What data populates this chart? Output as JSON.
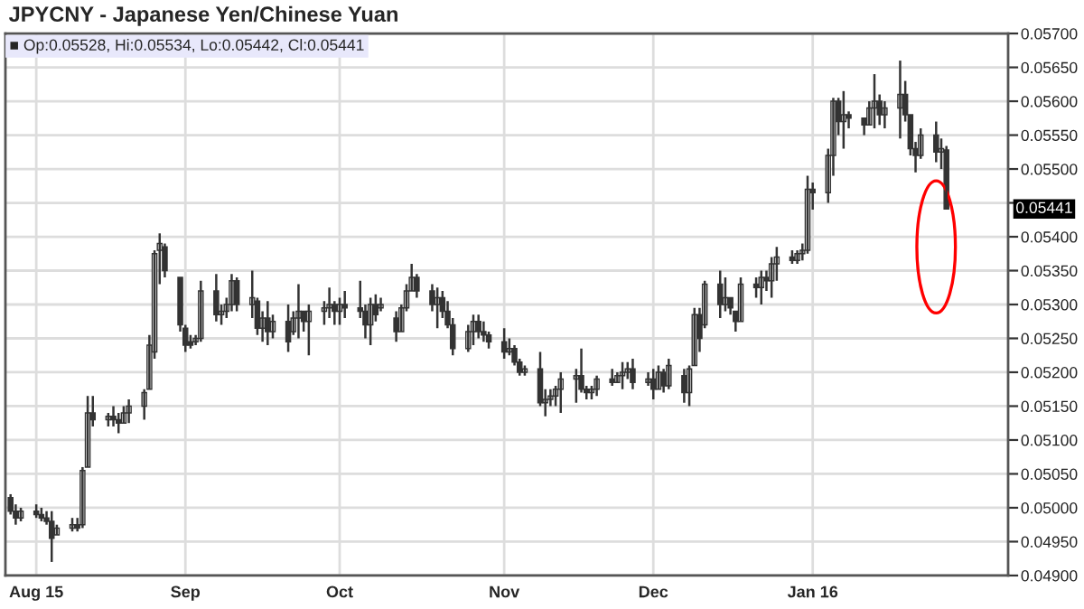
{
  "chart_data": {
    "type": "candlestick",
    "title": "JPYCNY - Japanese Yen/Chinese Yuan",
    "subtitle": "■ Op:0.05528, Hi:0.05534, Lo:0.05442, Cl:0.05441",
    "x": [
      "2015-07-29",
      "2015-07-30",
      "2015-07-31",
      "2015-08-03",
      "2015-08-04",
      "2015-08-05",
      "2015-08-06",
      "2015-08-07",
      "2015-08-10",
      "2015-08-11",
      "2015-08-12",
      "2015-08-13",
      "2015-08-14",
      "2015-08-17",
      "2015-08-18",
      "2015-08-19",
      "2015-08-20",
      "2015-08-21",
      "2015-08-24",
      "2015-08-25",
      "2015-08-26",
      "2015-08-27",
      "2015-08-28",
      "2015-08-31",
      "2015-09-01",
      "2015-09-02",
      "2015-09-03",
      "2015-09-04",
      "2015-09-07",
      "2015-09-08",
      "2015-09-09",
      "2015-09-10",
      "2015-09-11",
      "2015-09-14",
      "2015-09-15",
      "2015-09-16",
      "2015-09-17",
      "2015-09-18",
      "2015-09-21",
      "2015-09-22",
      "2015-09-23",
      "2015-09-24",
      "2015-09-25",
      "2015-09-28",
      "2015-09-29",
      "2015-09-30",
      "2015-10-01",
      "2015-10-02",
      "2015-10-05",
      "2015-10-06",
      "2015-10-07",
      "2015-10-08",
      "2015-10-09",
      "2015-10-12",
      "2015-10-13",
      "2015-10-14",
      "2015-10-15",
      "2015-10-16",
      "2015-10-19",
      "2015-10-20",
      "2015-10-21",
      "2015-10-22",
      "2015-10-23",
      "2015-10-26",
      "2015-10-27",
      "2015-10-28",
      "2015-10-29",
      "2015-10-30",
      "2015-11-02",
      "2015-11-03",
      "2015-11-04",
      "2015-11-05",
      "2015-11-06",
      "2015-11-09",
      "2015-11-10",
      "2015-11-11",
      "2015-11-12",
      "2015-11-13",
      "2015-11-16",
      "2015-11-17",
      "2015-11-18",
      "2015-11-19",
      "2015-11-20",
      "2015-11-23",
      "2015-11-24",
      "2015-11-25",
      "2015-11-26",
      "2015-11-27",
      "2015-11-30",
      "2015-12-01",
      "2015-12-02",
      "2015-12-03",
      "2015-12-04",
      "2015-12-07",
      "2015-12-08",
      "2015-12-09",
      "2015-12-10",
      "2015-12-11",
      "2015-12-14",
      "2015-12-15",
      "2015-12-16",
      "2015-12-17",
      "2015-12-18",
      "2015-12-21",
      "2015-12-22",
      "2015-12-23",
      "2015-12-24",
      "2015-12-25",
      "2015-12-28",
      "2015-12-29",
      "2015-12-30",
      "2015-12-31",
      "2016-01-01",
      "2016-01-04",
      "2016-01-05",
      "2016-01-06",
      "2016-01-07",
      "2016-01-08",
      "2016-01-11",
      "2016-01-12",
      "2016-01-13",
      "2016-01-14",
      "2016-01-15",
      "2016-01-18",
      "2016-01-19",
      "2016-01-20",
      "2016-01-21",
      "2016-01-22",
      "2016-01-25",
      "2016-01-26",
      "2016-01-27"
    ],
    "ohlc": [
      [
        0.05015,
        0.0502,
        0.0499,
        0.04995
      ],
      [
        0.04995,
        0.05005,
        0.04975,
        0.04985
      ],
      [
        0.04985,
        0.05,
        0.0498,
        0.04995
      ],
      [
        0.04995,
        0.05005,
        0.04985,
        0.0499
      ],
      [
        0.0499,
        0.05,
        0.0498,
        0.04985
      ],
      [
        0.04985,
        0.04995,
        0.04975,
        0.0498
      ],
      [
        0.0498,
        0.04995,
        0.0492,
        0.04955
      ],
      [
        0.0496,
        0.04975,
        0.0496,
        0.0497
      ],
      [
        0.0497,
        0.04985,
        0.04965,
        0.04975
      ],
      [
        0.04975,
        0.04985,
        0.04965,
        0.0497
      ],
      [
        0.04975,
        0.0506,
        0.0497,
        0.05055
      ],
      [
        0.0506,
        0.05165,
        0.0506,
        0.0514
      ],
      [
        0.0514,
        0.05165,
        0.0512,
        0.0513
      ],
      [
        0.0513,
        0.0514,
        0.0512,
        0.05135
      ],
      [
        0.05135,
        0.0515,
        0.0512,
        0.0513
      ],
      [
        0.0513,
        0.0514,
        0.0511,
        0.05125
      ],
      [
        0.05125,
        0.0515,
        0.05125,
        0.0514
      ],
      [
        0.0514,
        0.0516,
        0.05125,
        0.0515
      ],
      [
        0.0515,
        0.05175,
        0.0513,
        0.0517
      ],
      [
        0.05175,
        0.05255,
        0.05175,
        0.0524
      ],
      [
        0.0523,
        0.0538,
        0.0522,
        0.05375
      ],
      [
        0.0538,
        0.05405,
        0.0533,
        0.0539
      ],
      [
        0.05385,
        0.0539,
        0.0534,
        0.0535
      ],
      [
        0.0534,
        0.0534,
        0.0526,
        0.0527
      ],
      [
        0.05265,
        0.0527,
        0.0523,
        0.0524
      ],
      [
        0.05245,
        0.05255,
        0.05235,
        0.0524
      ],
      [
        0.05245,
        0.05255,
        0.0524,
        0.0525
      ],
      [
        0.0525,
        0.05335,
        0.05245,
        0.0532
      ],
      [
        0.0532,
        0.05345,
        0.05275,
        0.05285
      ],
      [
        0.05285,
        0.053,
        0.0527,
        0.0529
      ],
      [
        0.0529,
        0.0531,
        0.0528,
        0.053
      ],
      [
        0.053,
        0.05345,
        0.0529,
        0.05335
      ],
      [
        0.05335,
        0.0534,
        0.0529,
        0.053
      ],
      [
        0.053,
        0.0535,
        0.0528,
        0.0531
      ],
      [
        0.05305,
        0.0531,
        0.05255,
        0.05265
      ],
      [
        0.05265,
        0.0529,
        0.05245,
        0.0528
      ],
      [
        0.0528,
        0.05305,
        0.0524,
        0.0526
      ],
      [
        0.0526,
        0.05285,
        0.0525,
        0.05275
      ],
      [
        0.05275,
        0.053,
        0.0523,
        0.05245
      ],
      [
        0.0526,
        0.0529,
        0.05255,
        0.0528
      ],
      [
        0.0528,
        0.0533,
        0.0525,
        0.0529
      ],
      [
        0.0529,
        0.0529,
        0.0526,
        0.05275
      ],
      [
        0.05275,
        0.053,
        0.05225,
        0.0529
      ],
      [
        0.0529,
        0.05305,
        0.0527,
        0.05295
      ],
      [
        0.05295,
        0.05325,
        0.0528,
        0.053
      ],
      [
        0.053,
        0.05305,
        0.0527,
        0.0529
      ],
      [
        0.0529,
        0.0531,
        0.0527,
        0.053
      ],
      [
        0.053,
        0.0532,
        0.0528,
        0.05295
      ],
      [
        0.05295,
        0.05335,
        0.0528,
        0.0529
      ],
      [
        0.0529,
        0.053,
        0.0525,
        0.0527
      ],
      [
        0.0527,
        0.0531,
        0.0524,
        0.053
      ],
      [
        0.053,
        0.05315,
        0.05275,
        0.05285
      ],
      [
        0.05295,
        0.0531,
        0.0529,
        0.053
      ],
      [
        0.0528,
        0.0529,
        0.05245,
        0.0526
      ],
      [
        0.0526,
        0.053,
        0.0526,
        0.05295
      ],
      [
        0.05295,
        0.0533,
        0.0529,
        0.0532
      ],
      [
        0.0532,
        0.0536,
        0.0532,
        0.0534
      ],
      [
        0.0534,
        0.05345,
        0.0531,
        0.0532
      ],
      [
        0.0532,
        0.0533,
        0.0529,
        0.053
      ],
      [
        0.053,
        0.05325,
        0.05265,
        0.0531
      ],
      [
        0.0531,
        0.0532,
        0.0528,
        0.0529
      ],
      [
        0.0529,
        0.05305,
        0.05265,
        0.0527
      ],
      [
        0.0527,
        0.0528,
        0.05225,
        0.05235
      ],
      [
        0.05235,
        0.0527,
        0.0523,
        0.0526
      ],
      [
        0.0526,
        0.05285,
        0.0524,
        0.05275
      ],
      [
        0.05275,
        0.05285,
        0.0525,
        0.0526
      ],
      [
        0.0526,
        0.05275,
        0.05245,
        0.05255
      ],
      [
        0.05255,
        0.0526,
        0.05235,
        0.05245
      ],
      [
        0.05245,
        0.05265,
        0.0522,
        0.0523
      ],
      [
        0.0523,
        0.0525,
        0.05225,
        0.05235
      ],
      [
        0.05235,
        0.0524,
        0.0521,
        0.05215
      ],
      [
        0.05215,
        0.0522,
        0.05195,
        0.052
      ],
      [
        0.052,
        0.0521,
        0.05195,
        0.05205
      ],
      [
        0.05205,
        0.0523,
        0.0515,
        0.05155
      ],
      [
        0.05155,
        0.05175,
        0.05135,
        0.0516
      ],
      [
        0.0516,
        0.05175,
        0.0515,
        0.05165
      ],
      [
        0.05165,
        0.0518,
        0.0515,
        0.05175
      ],
      [
        0.05175,
        0.052,
        0.0514,
        0.0519
      ],
      [
        0.0519,
        0.05205,
        0.05155,
        0.05195
      ],
      [
        0.05195,
        0.05235,
        0.0517,
        0.05175
      ],
      [
        0.05175,
        0.0518,
        0.0516,
        0.0517
      ],
      [
        0.0517,
        0.0518,
        0.0516,
        0.05175
      ],
      [
        0.05175,
        0.05195,
        0.05165,
        0.0519
      ],
      [
        0.0519,
        0.05205,
        0.0518,
        0.05185
      ],
      [
        0.05185,
        0.052,
        0.05185,
        0.05195
      ],
      [
        0.05195,
        0.05215,
        0.05175,
        0.052
      ],
      [
        0.052,
        0.05215,
        0.0519,
        0.05205
      ],
      [
        0.05205,
        0.0522,
        0.05175,
        0.05185
      ],
      [
        0.05185,
        0.052,
        0.0518,
        0.0519
      ],
      [
        0.0519,
        0.05205,
        0.0516,
        0.05175
      ],
      [
        0.05175,
        0.0521,
        0.05175,
        0.052
      ],
      [
        0.052,
        0.05205,
        0.0517,
        0.0518
      ],
      [
        0.0518,
        0.0522,
        0.05175,
        0.0521
      ],
      [
        0.05195,
        0.05205,
        0.05155,
        0.0517
      ],
      [
        0.0517,
        0.0521,
        0.0515,
        0.05205
      ],
      [
        0.0521,
        0.05295,
        0.0521,
        0.05285
      ],
      [
        0.05285,
        0.05295,
        0.0523,
        0.0525
      ],
      [
        0.0527,
        0.05335,
        0.05265,
        0.0533
      ],
      [
        0.0533,
        0.0535,
        0.0528,
        0.053
      ],
      [
        0.053,
        0.0534,
        0.0529,
        0.0531
      ],
      [
        0.0531,
        0.0531,
        0.05285,
        0.05295
      ],
      [
        0.0529,
        0.0529,
        0.0526,
        0.05275
      ],
      [
        0.05275,
        0.0534,
        0.05275,
        0.0533
      ],
      [
        0.0533,
        0.0534,
        0.0531,
        0.05325
      ],
      [
        0.05325,
        0.0535,
        0.053,
        0.0534
      ],
      [
        0.0534,
        0.0535,
        0.0532,
        0.05335
      ],
      [
        0.05335,
        0.0537,
        0.0531,
        0.0536
      ],
      [
        0.0536,
        0.05385,
        0.05335,
        0.0537
      ],
      [
        0.0537,
        0.0538,
        0.0536,
        0.05365
      ],
      [
        0.05365,
        0.0538,
        0.0536,
        0.05375
      ],
      [
        0.05375,
        0.0539,
        0.05365,
        0.0538
      ],
      [
        0.0538,
        0.0549,
        0.05375,
        0.0547
      ],
      [
        0.0547,
        0.0548,
        0.0544,
        0.05465
      ],
      [
        0.05465,
        0.0553,
        0.0545,
        0.0552
      ],
      [
        0.0552,
        0.05605,
        0.0549,
        0.056
      ],
      [
        0.056,
        0.05605,
        0.0555,
        0.0557
      ],
      [
        0.0557,
        0.05615,
        0.0553,
        0.0558
      ],
      [
        0.0558,
        0.05585,
        0.0556,
        0.05575
      ],
      [
        0.05575,
        0.05575,
        0.0555,
        0.05565
      ],
      [
        0.05565,
        0.056,
        0.05565,
        0.0559
      ],
      [
        0.0559,
        0.0564,
        0.0556,
        0.056
      ],
      [
        0.056,
        0.0561,
        0.05565,
        0.0558
      ],
      [
        0.0558,
        0.056,
        0.0556,
        0.0559
      ],
      [
        0.0559,
        0.0566,
        0.05545,
        0.0561
      ],
      [
        0.0561,
        0.0563,
        0.0557,
        0.0558
      ],
      [
        0.0558,
        0.0558,
        0.0552,
        0.0553
      ],
      [
        0.0553,
        0.0554,
        0.05495,
        0.0552
      ],
      [
        0.0552,
        0.0556,
        0.05515,
        0.0555
      ],
      [
        0.0555,
        0.0557,
        0.0551,
        0.05525
      ],
      [
        0.05525,
        0.05545,
        0.055,
        0.0553
      ],
      [
        0.05528,
        0.05534,
        0.05441,
        0.05441
      ]
    ],
    "xlim": [
      "2015-07-28",
      "2016-02-08"
    ],
    "xticks": [
      {
        "value": "2015-08-03",
        "label": "Aug 15"
      },
      {
        "value": "2015-09-01",
        "label": "Sep"
      },
      {
        "value": "2015-10-01",
        "label": "Oct"
      },
      {
        "value": "2015-11-02",
        "label": "Nov"
      },
      {
        "value": "2015-12-01",
        "label": "Dec"
      },
      {
        "value": "2016-01-01",
        "label": "Jan 16"
      }
    ],
    "ylim": [
      0.049,
      0.057
    ],
    "yticks": [
      {
        "value": 0.049,
        "label": "0.04900"
      },
      {
        "value": 0.0495,
        "label": "0.04950"
      },
      {
        "value": 0.05,
        "label": "0.05000"
      },
      {
        "value": 0.0505,
        "label": "0.05050"
      },
      {
        "value": 0.051,
        "label": "0.05100"
      },
      {
        "value": 0.0515,
        "label": "0.05150"
      },
      {
        "value": 0.052,
        "label": "0.05200"
      },
      {
        "value": 0.0525,
        "label": "0.05250"
      },
      {
        "value": 0.053,
        "label": "0.05300"
      },
      {
        "value": 0.0535,
        "label": "0.05350"
      },
      {
        "value": 0.054,
        "label": "0.05400"
      },
      {
        "value": 0.0545,
        "label": null
      },
      {
        "value": 0.055,
        "label": "0.05500"
      },
      {
        "value": 0.0555,
        "label": "0.05550"
      },
      {
        "value": 0.056,
        "label": "0.05600"
      },
      {
        "value": 0.0565,
        "label": "0.05650"
      },
      {
        "value": 0.057,
        "label": "0.05700"
      }
    ],
    "annotations": [
      "0.05441"
    ],
    "grid": true
  }
}
